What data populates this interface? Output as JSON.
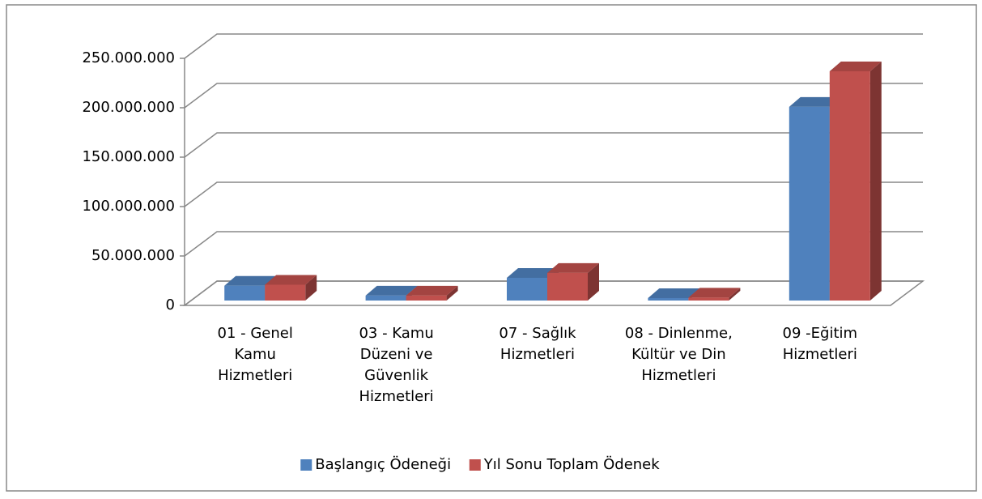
{
  "chart_data": {
    "type": "bar3d",
    "categories": [
      "01 - Genel Kamu Hizmetleri",
      "03 - Kamu Düzeni ve Güvenlik Hizmetleri",
      "07 - Sağlık Hizmetleri",
      "08 - Dinlenme, Kültür ve Din Hizmetleri",
      "09 -Eğitim Hizmetleri"
    ],
    "series": [
      {
        "name": "Başlangıç Ödeneği",
        "color": "#4f81bd",
        "values": [
          15000000,
          5000000,
          23000000,
          2500000,
          196000000
        ]
      },
      {
        "name": "Yıl Sonu Toplam Ödenek",
        "color": "#c0504d",
        "values": [
          16000000,
          5000000,
          28000000,
          3000000,
          232000000
        ]
      }
    ],
    "ylim": [
      0,
      250000000
    ],
    "yticks": [
      0,
      {
        "value": 50000000,
        "label": "50.000.000"
      },
      {
        "value": 100000000,
        "label": "100.000.000"
      },
      {
        "value": 150000000,
        "label": "150.000.000"
      },
      {
        "value": 200000000,
        "label": "200.000.000"
      },
      {
        "value": 250000000,
        "label": "250.000.000"
      }
    ],
    "grid": true,
    "legend": "bottom"
  }
}
